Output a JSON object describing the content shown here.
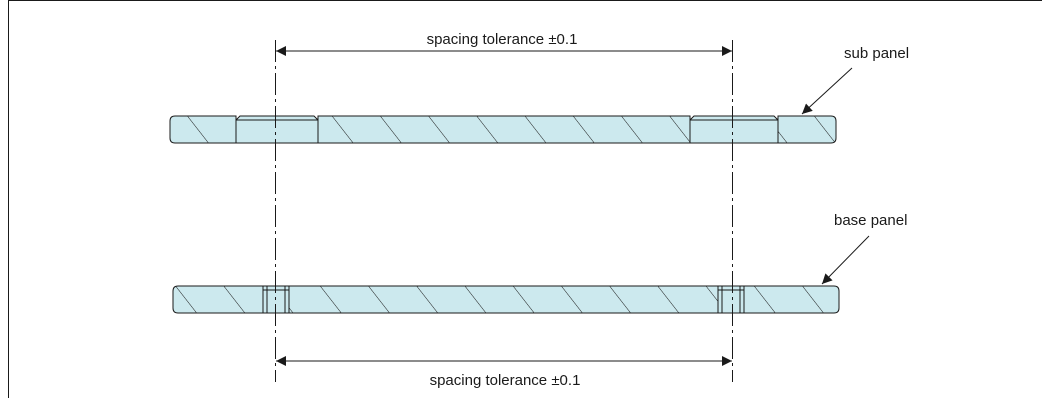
{
  "colors": {
    "panel_fill": "#cce9ee",
    "outline": "#1a1a1a",
    "background": "#ffffff"
  },
  "labels": {
    "top_dimension": "spacing tolerance ±0.1",
    "bottom_dimension": "spacing tolerance ±0.1",
    "sub_panel": "sub panel",
    "base_panel": "base panel"
  }
}
